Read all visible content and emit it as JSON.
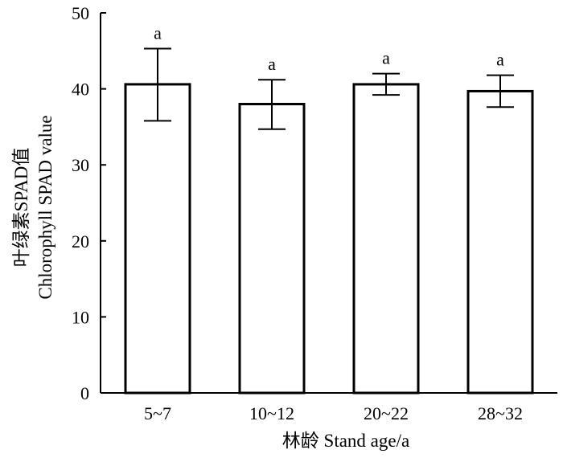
{
  "chart_data": {
    "type": "bar",
    "categories": [
      "5~7",
      "10~12",
      "20~22",
      "28~32"
    ],
    "values": [
      40.6,
      38.0,
      40.6,
      39.7
    ],
    "error_upper": [
      45.3,
      41.2,
      42.0,
      41.8
    ],
    "error_lower": [
      35.8,
      34.7,
      39.2,
      37.6
    ],
    "annotations": [
      "a",
      "a",
      "a",
      "a"
    ],
    "xlabel": "林龄 Stand age/a",
    "ylabel_line1": "叶绿素SPAD值",
    "ylabel_line2": "Chlorophyll SPAD value",
    "ylim": [
      0,
      50
    ],
    "yticks": [
      "0",
      "10",
      "20",
      "30",
      "40",
      "50"
    ],
    "grid": false,
    "legend": "none",
    "bar_fill": "#ffffff",
    "bar_stroke": "#000000"
  }
}
